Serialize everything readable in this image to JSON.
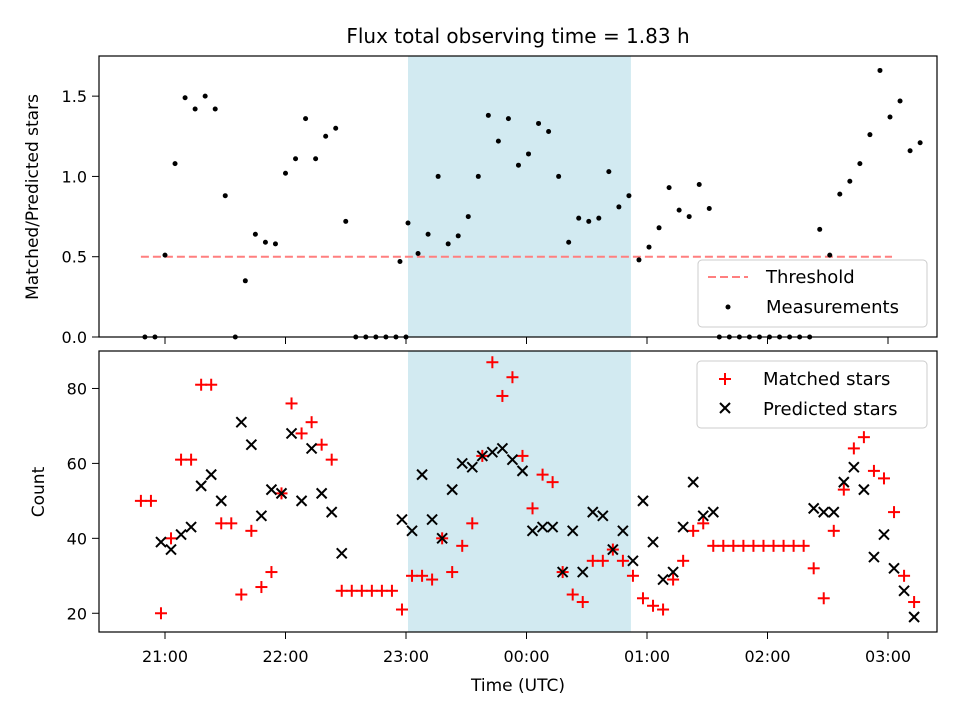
{
  "chart_data": [
    {
      "type": "scatter",
      "title": "Flux total observing time = 1.83 h",
      "xlabel": "",
      "ylabel": "Matched/Predicted stars",
      "ylim": [
        0,
        1.75
      ],
      "yticks": [
        "0.0",
        "0.5",
        "1.0",
        "1.5"
      ],
      "grid": false,
      "legend_position": "lower-right",
      "shaded_region": {
        "start": "23:01",
        "end": "00:52",
        "color": "#add8e6"
      },
      "threshold": {
        "name": "Threshold",
        "value": 0.5,
        "x_start": "20:48",
        "x_end": "03:02",
        "color": "#ff7f7f"
      },
      "series": [
        {
          "name": "Measurements",
          "color": "#000000",
          "marker": "dot",
          "points": [
            [
              "20:50",
              0
            ],
            [
              "20:55",
              0
            ],
            [
              "21:00",
              0.51
            ],
            [
              "21:05",
              1.08
            ],
            [
              "21:10",
              1.49
            ],
            [
              "21:15",
              1.42
            ],
            [
              "21:20",
              1.5
            ],
            [
              "21:25",
              1.42
            ],
            [
              "21:30",
              0.88
            ],
            [
              "21:35",
              0
            ],
            [
              "21:40",
              0.35
            ],
            [
              "21:45",
              0.64
            ],
            [
              "21:50",
              0.59
            ],
            [
              "21:55",
              0.58
            ],
            [
              "22:00",
              1.02
            ],
            [
              "22:05",
              1.11
            ],
            [
              "22:10",
              1.36
            ],
            [
              "22:15",
              1.11
            ],
            [
              "22:20",
              1.25
            ],
            [
              "22:25",
              1.3
            ],
            [
              "22:30",
              0.72
            ],
            [
              "22:35",
              0
            ],
            [
              "22:40",
              0
            ],
            [
              "22:45",
              0
            ],
            [
              "22:50",
              0
            ],
            [
              "22:55",
              0
            ],
            [
              "23:00",
              0
            ],
            [
              "22:57",
              0.47
            ],
            [
              "23:01",
              0.71
            ],
            [
              "23:06",
              0.52
            ],
            [
              "23:11",
              0.64
            ],
            [
              "23:16",
              1.0
            ],
            [
              "23:21",
              0.58
            ],
            [
              "23:26",
              0.63
            ],
            [
              "23:31",
              0.75
            ],
            [
              "23:36",
              1.0
            ],
            [
              "23:41",
              1.38
            ],
            [
              "23:46",
              1.22
            ],
            [
              "23:51",
              1.36
            ],
            [
              "23:56",
              1.07
            ],
            [
              "00:01",
              1.14
            ],
            [
              "00:06",
              1.33
            ],
            [
              "00:11",
              1.28
            ],
            [
              "00:16",
              1.0
            ],
            [
              "00:21",
              0.59
            ],
            [
              "00:26",
              0.74
            ],
            [
              "00:31",
              0.72
            ],
            [
              "00:36",
              0.74
            ],
            [
              "00:41",
              1.03
            ],
            [
              "00:46",
              0.81
            ],
            [
              "00:51",
              0.88
            ],
            [
              "00:56",
              0.48
            ],
            [
              "01:01",
              0.56
            ],
            [
              "01:06",
              0.68
            ],
            [
              "01:11",
              0.93
            ],
            [
              "01:16",
              0.79
            ],
            [
              "01:21",
              0.75
            ],
            [
              "01:26",
              0.95
            ],
            [
              "01:31",
              0.8
            ],
            [
              "01:36",
              0
            ],
            [
              "01:41",
              0
            ],
            [
              "01:46",
              0
            ],
            [
              "01:51",
              0
            ],
            [
              "01:56",
              0
            ],
            [
              "02:01",
              0
            ],
            [
              "02:06",
              0
            ],
            [
              "02:11",
              0
            ],
            [
              "02:16",
              0
            ],
            [
              "02:21",
              0
            ],
            [
              "02:26",
              0.67
            ],
            [
              "02:31",
              0.51
            ],
            [
              "02:36",
              0.89
            ],
            [
              "02:41",
              0.97
            ],
            [
              "02:46",
              1.08
            ],
            [
              "02:51",
              1.26
            ],
            [
              "02:56",
              1.66
            ],
            [
              "03:01",
              1.37
            ],
            [
              "03:06",
              1.47
            ],
            [
              "03:11",
              1.16
            ],
            [
              "03:16",
              1.21
            ]
          ]
        }
      ]
    },
    {
      "type": "scatter",
      "title": "",
      "xlabel": "Time (UTC)",
      "ylabel": "Count",
      "ylim": [
        15,
        90
      ],
      "yticks": [
        "20",
        "40",
        "60",
        "80"
      ],
      "xticks": [
        "21:00",
        "22:00",
        "23:00",
        "00:00",
        "01:00",
        "02:00",
        "03:00"
      ],
      "grid": false,
      "legend_position": "top-right",
      "shaded_region": {
        "start": "23:01",
        "end": "00:52",
        "color": "#add8e6"
      },
      "series": [
        {
          "name": "Matched stars",
          "color": "#ff0000",
          "marker": "plus",
          "points": [
            [
              "20:48",
              50
            ],
            [
              "20:53",
              50
            ],
            [
              "20:58",
              20
            ],
            [
              "21:03",
              40
            ],
            [
              "21:08",
              61
            ],
            [
              "21:13",
              61
            ],
            [
              "21:18",
              81
            ],
            [
              "21:23",
              81
            ],
            [
              "21:28",
              44
            ],
            [
              "21:33",
              44
            ],
            [
              "21:38",
              25
            ],
            [
              "21:43",
              42
            ],
            [
              "21:48",
              27
            ],
            [
              "21:53",
              31
            ],
            [
              "21:58",
              52
            ],
            [
              "22:03",
              76
            ],
            [
              "22:08",
              68
            ],
            [
              "22:13",
              71
            ],
            [
              "22:18",
              65
            ],
            [
              "22:23",
              61
            ],
            [
              "22:28",
              26
            ],
            [
              "22:33",
              26
            ],
            [
              "22:38",
              26
            ],
            [
              "22:43",
              26
            ],
            [
              "22:48",
              26
            ],
            [
              "22:53",
              26
            ],
            [
              "22:58",
              21
            ],
            [
              "23:03",
              30
            ],
            [
              "23:08",
              30
            ],
            [
              "23:13",
              29
            ],
            [
              "23:18",
              40
            ],
            [
              "23:23",
              31
            ],
            [
              "23:28",
              38
            ],
            [
              "23:33",
              44
            ],
            [
              "23:38",
              62
            ],
            [
              "23:43",
              87
            ],
            [
              "23:48",
              78
            ],
            [
              "23:53",
              83
            ],
            [
              "23:58",
              62
            ],
            [
              "00:03",
              48
            ],
            [
              "00:08",
              57
            ],
            [
              "00:13",
              55
            ],
            [
              "00:18",
              31
            ],
            [
              "00:23",
              25
            ],
            [
              "00:28",
              23
            ],
            [
              "00:33",
              34
            ],
            [
              "00:38",
              34
            ],
            [
              "00:43",
              37
            ],
            [
              "00:48",
              34
            ],
            [
              "00:53",
              30
            ],
            [
              "00:58",
              24
            ],
            [
              "01:03",
              22
            ],
            [
              "01:08",
              21
            ],
            [
              "01:13",
              29
            ],
            [
              "01:18",
              34
            ],
            [
              "01:23",
              42
            ],
            [
              "01:28",
              44
            ],
            [
              "01:33",
              38
            ],
            [
              "01:38",
              38
            ],
            [
              "01:43",
              38
            ],
            [
              "01:48",
              38
            ],
            [
              "01:53",
              38
            ],
            [
              "01:58",
              38
            ],
            [
              "02:03",
              38
            ],
            [
              "02:08",
              38
            ],
            [
              "02:13",
              38
            ],
            [
              "02:18",
              38
            ],
            [
              "02:23",
              32
            ],
            [
              "02:28",
              24
            ],
            [
              "02:33",
              42
            ],
            [
              "02:38",
              53
            ],
            [
              "02:43",
              64
            ],
            [
              "02:48",
              67
            ],
            [
              "02:53",
              58
            ],
            [
              "02:58",
              56
            ],
            [
              "03:03",
              47
            ],
            [
              "03:08",
              30
            ],
            [
              "03:13",
              23
            ]
          ]
        },
        {
          "name": "Predicted stars",
          "color": "#000000",
          "marker": "x",
          "points": [
            [
              "20:58",
              39
            ],
            [
              "21:03",
              37
            ],
            [
              "21:08",
              41
            ],
            [
              "21:13",
              43
            ],
            [
              "21:18",
              54
            ],
            [
              "21:23",
              57
            ],
            [
              "21:28",
              50
            ],
            [
              "21:38",
              71
            ],
            [
              "21:43",
              65
            ],
            [
              "21:48",
              46
            ],
            [
              "21:53",
              53
            ],
            [
              "21:58",
              52
            ],
            [
              "22:03",
              68
            ],
            [
              "22:08",
              50
            ],
            [
              "22:13",
              64
            ],
            [
              "22:18",
              52
            ],
            [
              "22:23",
              47
            ],
            [
              "22:28",
              36
            ],
            [
              "22:58",
              45
            ],
            [
              "23:03",
              42
            ],
            [
              "23:08",
              57
            ],
            [
              "23:13",
              45
            ],
            [
              "23:18",
              40
            ],
            [
              "23:23",
              53
            ],
            [
              "23:28",
              60
            ],
            [
              "23:33",
              59
            ],
            [
              "23:38",
              62
            ],
            [
              "23:43",
              63
            ],
            [
              "23:48",
              64
            ],
            [
              "23:53",
              61
            ],
            [
              "23:58",
              58
            ],
            [
              "00:03",
              42
            ],
            [
              "00:08",
              43
            ],
            [
              "00:13",
              43
            ],
            [
              "00:18",
              31
            ],
            [
              "00:23",
              42
            ],
            [
              "00:28",
              31
            ],
            [
              "00:33",
              47
            ],
            [
              "00:38",
              46
            ],
            [
              "00:43",
              37
            ],
            [
              "00:48",
              42
            ],
            [
              "00:53",
              34
            ],
            [
              "00:58",
              50
            ],
            [
              "01:03",
              39
            ],
            [
              "01:08",
              29
            ],
            [
              "01:13",
              31
            ],
            [
              "01:18",
              43
            ],
            [
              "01:23",
              55
            ],
            [
              "01:28",
              46
            ],
            [
              "01:33",
              47
            ],
            [
              "02:23",
              48
            ],
            [
              "02:28",
              47
            ],
            [
              "02:33",
              47
            ],
            [
              "02:38",
              55
            ],
            [
              "02:43",
              59
            ],
            [
              "02:48",
              53
            ],
            [
              "02:53",
              35
            ],
            [
              "02:58",
              41
            ],
            [
              "03:03",
              32
            ],
            [
              "03:08",
              26
            ],
            [
              "03:13",
              19
            ]
          ]
        }
      ]
    }
  ]
}
